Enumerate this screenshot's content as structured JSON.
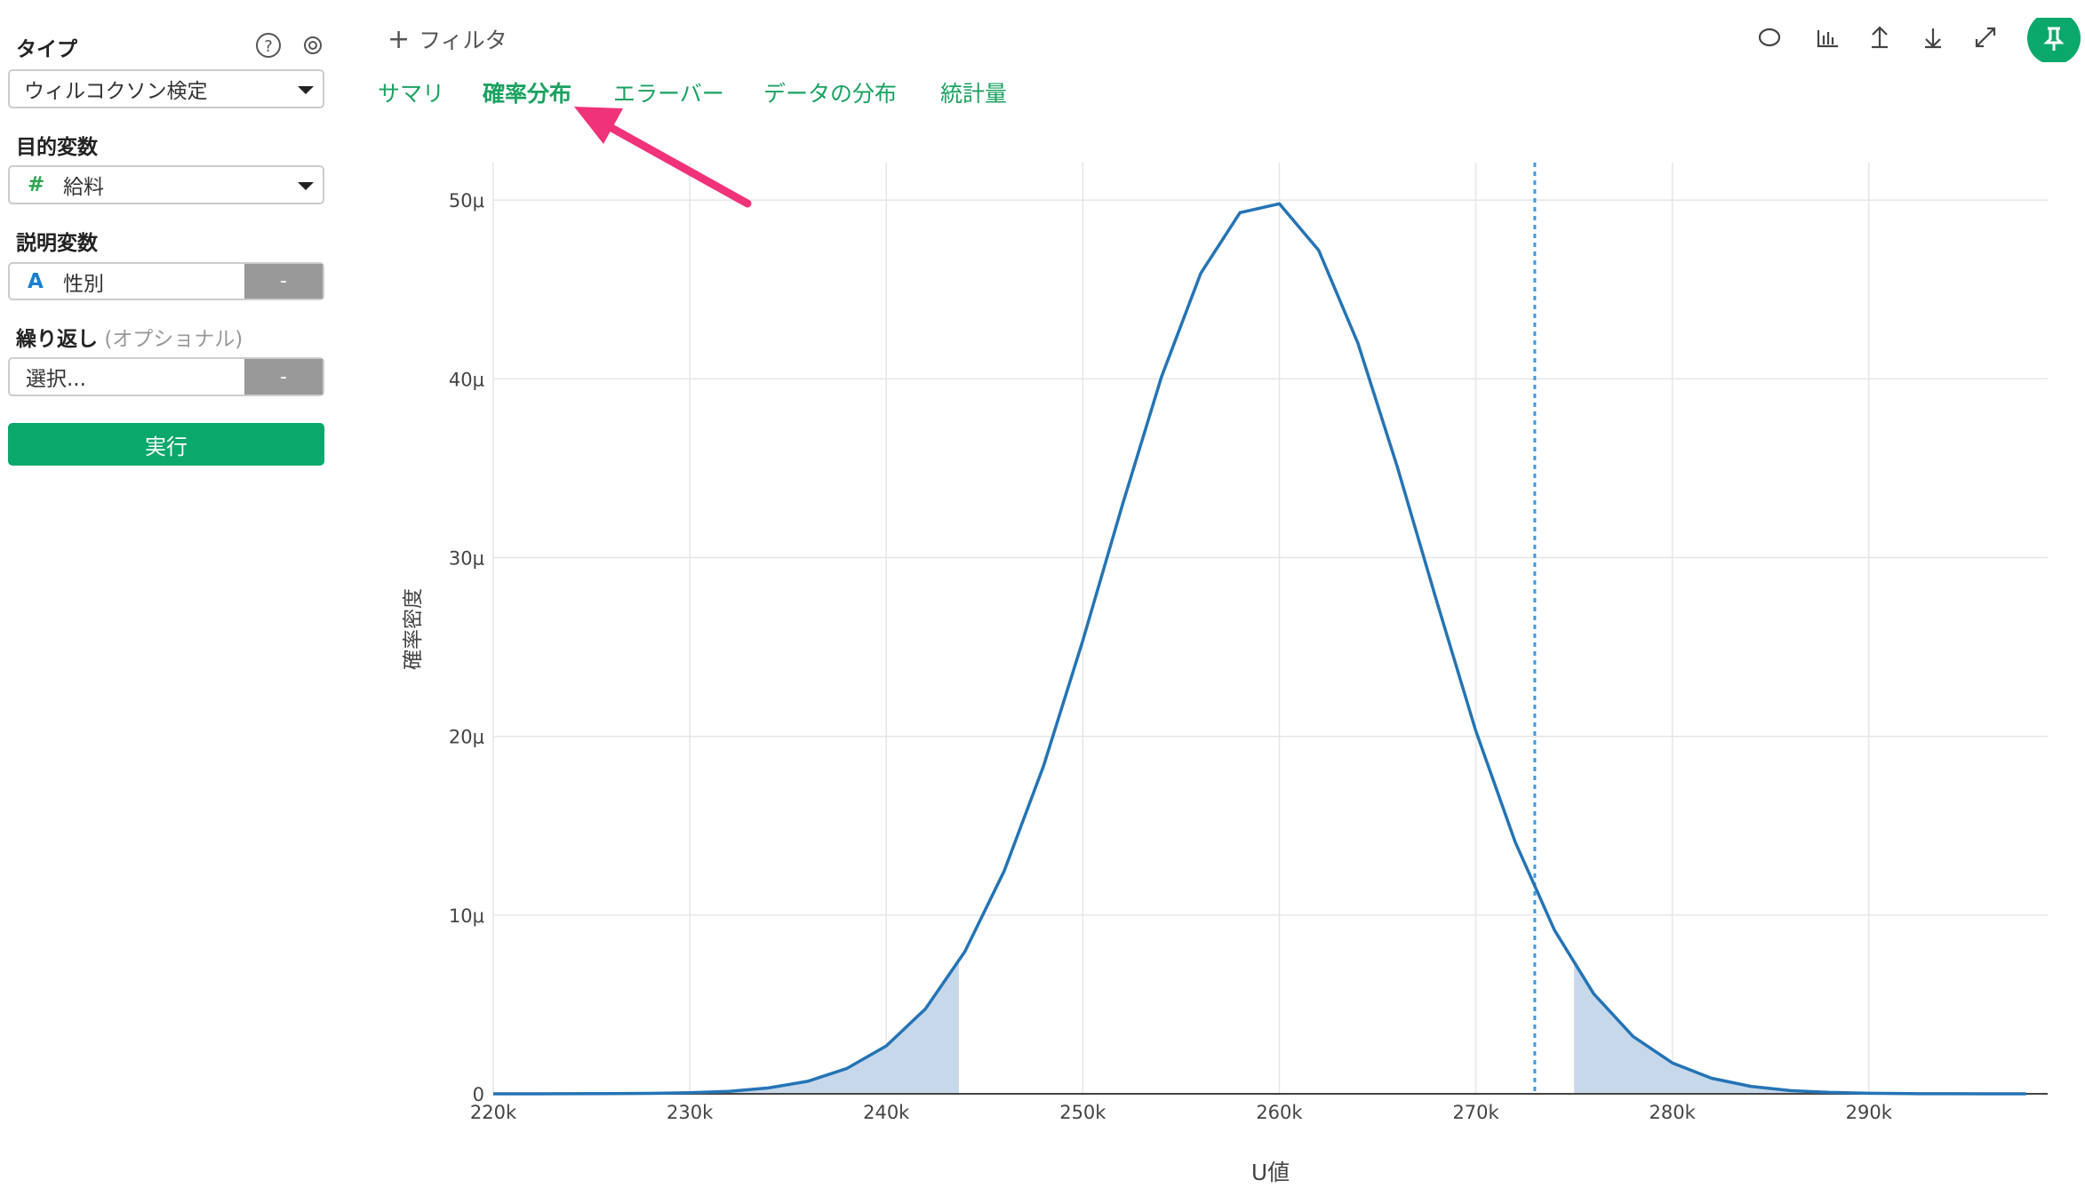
{
  "sidebar": {
    "type_label": "タイプ",
    "type_value": "ウィルコクソン検定",
    "target_label": "目的変数",
    "target_icon": "#",
    "target_value": "給料",
    "explanatory_label": "説明変数",
    "explanatory_icon": "A",
    "explanatory_value": "性別",
    "explanatory_button": "-",
    "repeat_label": "繰り返し",
    "repeat_optional": "(オプショナル)",
    "repeat_placeholder": "選択...",
    "repeat_button": "-",
    "run_button": "実行"
  },
  "toolbar": {
    "filter": "フィルタ"
  },
  "tabs": {
    "items": [
      "サマリ",
      "確率分布",
      "エラーバー",
      "データの分布",
      "統計量"
    ],
    "active": 1
  },
  "chart_data": {
    "type": "line",
    "x_label": "U値",
    "y_label": "確率密度",
    "color": "#2474b5",
    "shade_color": "#c8d8eb",
    "marker_color": "#3d9be6",
    "grid": true,
    "x": [
      220000,
      222000,
      224000,
      226000,
      228000,
      230000,
      232000,
      234000,
      236000,
      238000,
      240000,
      242000,
      244000,
      246000,
      248000,
      250000,
      252000,
      254000,
      256000,
      258000,
      260000,
      262000,
      264000,
      266000,
      268000,
      270000,
      272000,
      274000,
      276000,
      278000,
      280000,
      282000,
      284000,
      286000,
      288000,
      290000,
      292000,
      294000,
      296000,
      298000
    ],
    "values": [
      0,
      9e-10,
      2.8e-09,
      8.3e-09,
      2.3e-08,
      5.9e-08,
      1.4e-07,
      3.3e-07,
      7e-07,
      1.42e-06,
      2.68e-06,
      4.76e-06,
      7.96e-06,
      1.247e-05,
      1.833e-05,
      2.535e-05,
      3.29e-05,
      4.01e-05,
      4.59e-05,
      4.93e-05,
      4.98e-05,
      4.72e-05,
      4.2e-05,
      3.51e-05,
      2.76e-05,
      2.03e-05,
      1.41e-05,
      9.16e-06,
      5.6e-06,
      3.21e-06,
      1.73e-06,
      8.7e-07,
      4.2e-07,
      1.8e-07,
      7.8e-08,
      3e-08,
      1.1e-08,
      4e-09,
      1e-09,
      0
    ],
    "lower_tail": 243700,
    "upper_tail": 275000,
    "marker_x": 273000,
    "xlim": [
      220000,
      299100
    ],
    "ylim": [
      0,
      5.21e-05
    ],
    "xticks": [
      {
        "value": 220000,
        "label": "220k"
      },
      {
        "value": 230000,
        "label": "230k"
      },
      {
        "value": 240000,
        "label": "240k"
      },
      {
        "value": 250000,
        "label": "250k"
      },
      {
        "value": 260000,
        "label": "260k"
      },
      {
        "value": 270000,
        "label": "270k"
      },
      {
        "value": 280000,
        "label": "280k"
      },
      {
        "value": 290000,
        "label": "290k"
      }
    ],
    "yticks": [
      0,
      {
        "value": 1e-05,
        "label": "10μ"
      },
      {
        "value": 2e-05,
        "label": "20μ"
      },
      {
        "value": 3e-05,
        "label": "30μ"
      },
      {
        "value": 4e-05,
        "label": "40μ"
      },
      {
        "value": 5e-05,
        "label": "50μ"
      }
    ]
  }
}
